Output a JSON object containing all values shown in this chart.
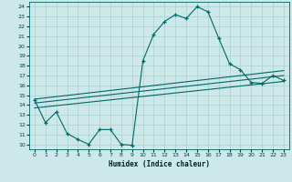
{
  "title": "",
  "xlabel": "Humidex (Indice chaleur)",
  "ylabel": "",
  "bg_color": "#cce8e8",
  "line_color": "#006868",
  "grid_color": "#aad0d0",
  "xlim": [
    -0.5,
    23.5
  ],
  "ylim": [
    9.5,
    24.5
  ],
  "xticks": [
    0,
    1,
    2,
    3,
    4,
    5,
    6,
    7,
    8,
    9,
    10,
    11,
    12,
    13,
    14,
    15,
    16,
    17,
    18,
    19,
    20,
    21,
    22,
    23
  ],
  "yticks": [
    10,
    11,
    12,
    13,
    14,
    15,
    16,
    17,
    18,
    19,
    20,
    21,
    22,
    23,
    24
  ],
  "main_x": [
    0,
    1,
    2,
    3,
    4,
    5,
    6,
    7,
    8,
    9,
    10,
    11,
    12,
    13,
    14,
    15,
    16,
    17,
    18,
    19,
    20,
    21,
    22,
    23
  ],
  "main_y": [
    14.5,
    12.2,
    13.3,
    11.1,
    10.5,
    10.0,
    11.5,
    11.5,
    10.0,
    9.9,
    18.5,
    21.2,
    22.5,
    23.2,
    22.8,
    24.0,
    23.5,
    20.8,
    18.2,
    17.6,
    16.3,
    16.2,
    17.0,
    16.5
  ],
  "trend1_x": [
    0,
    23
  ],
  "trend1_y": [
    14.6,
    17.5
  ],
  "trend2_x": [
    0,
    23
  ],
  "trend2_y": [
    14.2,
    17.0
  ],
  "trend3_x": [
    0,
    23
  ],
  "trend3_y": [
    13.7,
    16.4
  ]
}
